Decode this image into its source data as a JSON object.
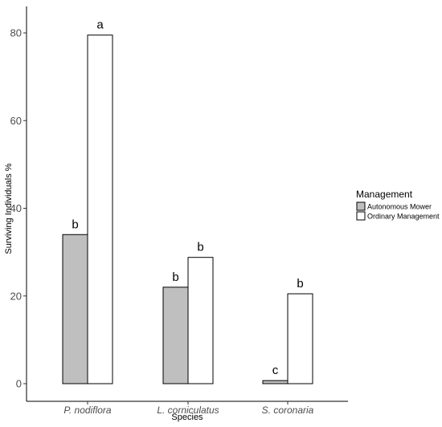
{
  "chart_data": {
    "type": "bar",
    "title": "",
    "xlabel": "Species",
    "ylabel": "Surviving Individuals %",
    "categories": [
      "P. nodiflora",
      "L. corniculatus",
      "S. coronaria"
    ],
    "series": [
      {
        "name": "Autonomous Mower",
        "values": [
          34,
          22,
          0.7
        ],
        "labels": [
          "b",
          "b",
          "c"
        ],
        "color": "#bfbfbf"
      },
      {
        "name": "Ordinary Management",
        "values": [
          79.5,
          28.8,
          20.5
        ],
        "labels": [
          "a",
          "b",
          "b"
        ],
        "color": "#ffffff"
      }
    ],
    "ylim": [
      -4,
      86
    ],
    "yticks": [
      0,
      20,
      40,
      60,
      80
    ],
    "grid": false,
    "legend": {
      "title": "Management",
      "placement": "right"
    }
  }
}
